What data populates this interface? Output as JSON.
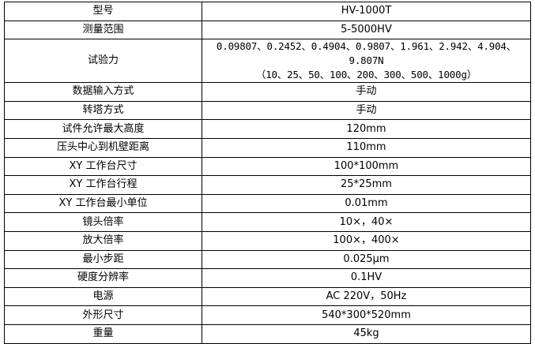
{
  "rows": [
    {
      "label": "型号",
      "value": "HV-1000T"
    },
    {
      "label": "测量范围",
      "value": "5-5000HV"
    },
    {
      "label": "试验力",
      "value": "0.09807、0.2452、0.4904、0.9807、1.961、2.942、4.904、9.807N",
      "value2": "（10、25、50、100、200、300、500、1000g）"
    },
    {
      "label": "数据输入方式",
      "value": "手动"
    },
    {
      "label": "转塔方式",
      "value": "手动"
    },
    {
      "label": "试件允许最大高度",
      "value": "120mm"
    },
    {
      "label": "压头中心到机壁距离",
      "value": "110mm"
    },
    {
      "label": "XY 工作台尺寸",
      "value": "100*100mm"
    },
    {
      "label": "XY 工作台行程",
      "value": "25*25mm"
    },
    {
      "label": "XY 工作台最小单位",
      "value": "0.01mm"
    },
    {
      "label": "镜头倍率",
      "value": "10×，40×"
    },
    {
      "label": "放大倍率",
      "value": "100×，400×"
    },
    {
      "label": "最小步距",
      "value": "0.025μm"
    },
    {
      "label": "硬度分辨率",
      "value": "0.1HV"
    },
    {
      "label": "电源",
      "value": "AC 220V，50Hz"
    },
    {
      "label": "外形尺寸",
      "value": "540*300*520mm"
    },
    {
      "label": "重量",
      "value": "45kg"
    }
  ]
}
